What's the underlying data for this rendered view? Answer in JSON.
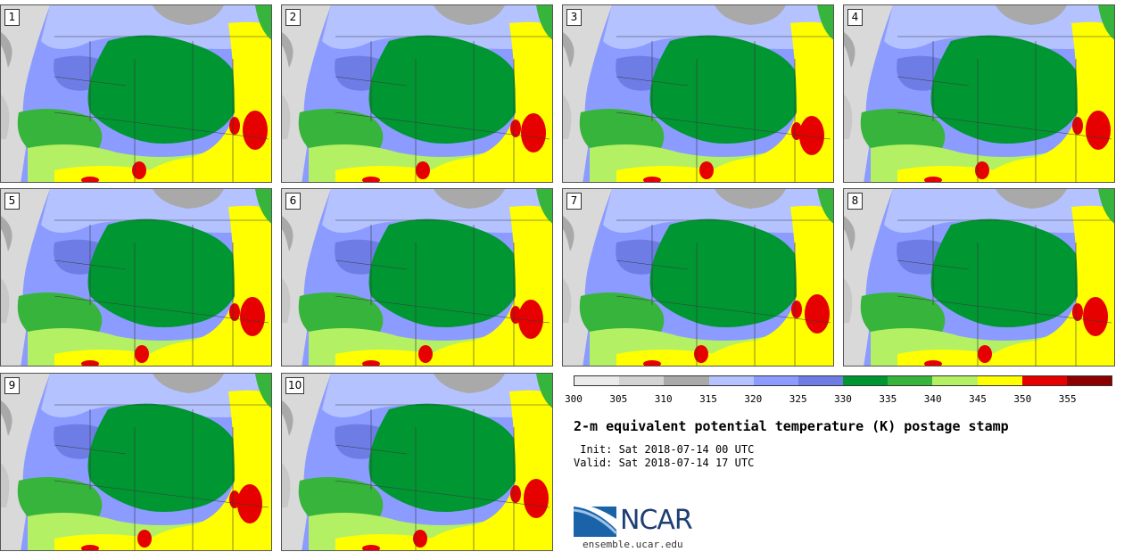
{
  "panels": [
    {
      "label": "1"
    },
    {
      "label": "2"
    },
    {
      "label": "3"
    },
    {
      "label": "4"
    },
    {
      "label": "5"
    },
    {
      "label": "6"
    },
    {
      "label": "7"
    },
    {
      "label": "8"
    },
    {
      "label": "9"
    },
    {
      "label": "10"
    }
  ],
  "colorbar": {
    "colors": [
      "#ebebeb",
      "#d3d3d3",
      "#a9a9a9",
      "#b4c3ff",
      "#8c9bff",
      "#6e7de6",
      "#009632",
      "#37b43c",
      "#b4f064",
      "#ffff00",
      "#e60000",
      "#8c0000"
    ],
    "ticks": [
      "300",
      "305",
      "310",
      "315",
      "320",
      "325",
      "330",
      "335",
      "340",
      "345",
      "350",
      "355"
    ]
  },
  "map_colors": {
    "ocean": "#d9d9d9",
    "land_gray": "#a9a9a9",
    "light_blue": "#b4c3ff",
    "blue": "#8c9bff",
    "dark_blue": "#6e7de6",
    "dark_green": "#009632",
    "green": "#37b43c",
    "light_green": "#b4f064",
    "yellow": "#ffff00",
    "red": "#e60000"
  },
  "title": "2-m equivalent potential temperature (K) postage stamp",
  "init": " Init: Sat 2018-07-14 00 UTC",
  "valid": "Valid: Sat 2018-07-14 17 UTC",
  "logo": {
    "text": "NCAR",
    "url": "ensemble.ucar.edu"
  }
}
